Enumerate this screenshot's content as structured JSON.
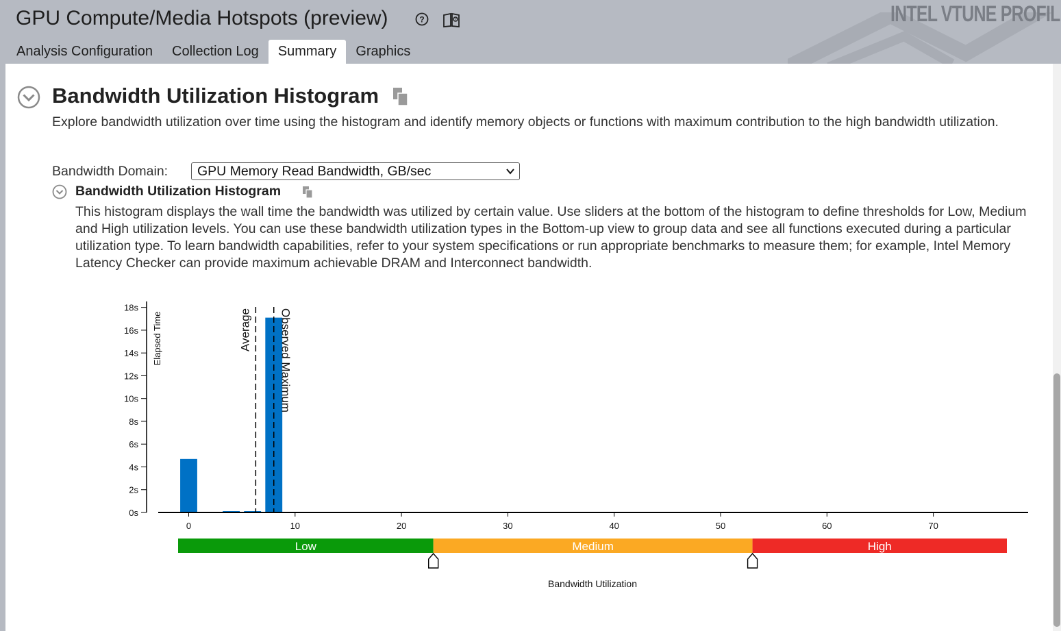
{
  "app": {
    "title": "GPU Compute/Media Hotspots (preview)",
    "brand": "INTEL VTUNE PROFILER",
    "help_icon": "question-circle-icon",
    "book_icon": "book-icon"
  },
  "tabs": [
    {
      "label": "Analysis Configuration",
      "active": false
    },
    {
      "label": "Collection Log",
      "active": false
    },
    {
      "label": "Summary",
      "active": true
    },
    {
      "label": "Graphics",
      "active": false
    }
  ],
  "section": {
    "title": "Bandwidth Utilization Histogram",
    "description": "Explore bandwidth utilization over time using the histogram and identify memory objects or functions with maximum contribution to the high bandwidth utilization.",
    "domain_label": "Bandwidth Domain:",
    "domain_value": "GPU Memory Read Bandwidth, GB/sec",
    "sub_title": "Bandwidth Utilization Histogram",
    "sub_description": "This histogram displays the wall time the bandwidth was utilized by certain value. Use sliders at the bottom of the histogram to define thresholds for Low, Medium and High utilization levels. You can use these bandwidth utilization types in the Bottom-up view to group data and see all functions executed during a particular utilization type. To learn bandwidth capabilities, refer to your system specifications or run appropriate benchmarks to measure them; for example, Intel Memory Latency Checker can provide maximum achievable DRAM and Interconnect bandwidth."
  },
  "chart_data": {
    "type": "bar",
    "title": "",
    "xlabel": "Bandwidth Utilization",
    "ylabel": "Elapsed Time",
    "xlim": [
      -2,
      77
    ],
    "ylim": [
      0,
      18
    ],
    "x_ticks": [
      0,
      10,
      20,
      30,
      40,
      50,
      60,
      70
    ],
    "y_ticks": [
      0,
      2,
      4,
      6,
      8,
      10,
      12,
      14,
      16,
      18
    ],
    "y_tick_suffix": "s",
    "bin_width": 1.6,
    "bars": [
      {
        "x": 0,
        "y": 4.7
      },
      {
        "x": 4,
        "y": 0.1
      },
      {
        "x": 6,
        "y": 0.1
      },
      {
        "x": 8,
        "y": 17.1
      }
    ],
    "markers": [
      {
        "label": "Average",
        "x": 6.3
      },
      {
        "label": "Observed Maximum",
        "x": 8.0
      }
    ],
    "utilization_levels": [
      {
        "label": "Low",
        "from": -1,
        "to": 23,
        "color": "#0a9a0a"
      },
      {
        "label": "Medium",
        "from": 23,
        "to": 53,
        "color": "#fba923"
      },
      {
        "label": "High",
        "from": 53,
        "to": 77,
        "color": "#ee2a26"
      }
    ],
    "thresholds": [
      23,
      53
    ],
    "bar_color": "#0071c5",
    "grid": false
  }
}
